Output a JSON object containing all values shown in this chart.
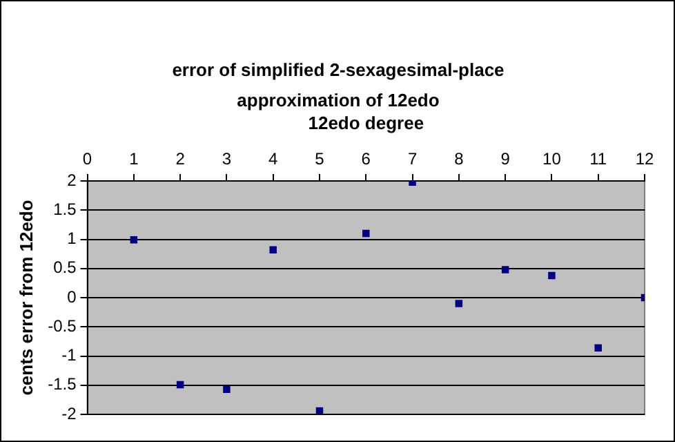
{
  "chart_data": {
    "type": "scatter",
    "title": "error of simplified 2-sexagesimal-place approximation of 12edo",
    "xlabel": "12edo degree",
    "ylabel": "cents error from 12edo",
    "x": [
      1,
      2,
      3,
      4,
      5,
      6,
      7,
      8,
      9,
      10,
      11,
      12
    ],
    "series": [
      {
        "color": "#000080",
        "values": [
          0.99,
          -1.49,
          -1.57,
          0.82,
          -1.94,
          1.1,
          1.98,
          -0.1,
          0.48,
          0.38,
          -0.86,
          0
        ]
      }
    ],
    "xlim": [
      0,
      12
    ],
    "xticks": [
      0,
      1,
      2,
      3,
      4,
      5,
      6,
      7,
      8,
      9,
      10,
      11,
      12
    ],
    "ylim": [
      -2,
      2
    ],
    "yticks": [
      -2,
      -1.5,
      -1,
      -0.5,
      0,
      0.5,
      1,
      1.5,
      2
    ],
    "grid": "y",
    "legend": false,
    "marker": "square"
  }
}
